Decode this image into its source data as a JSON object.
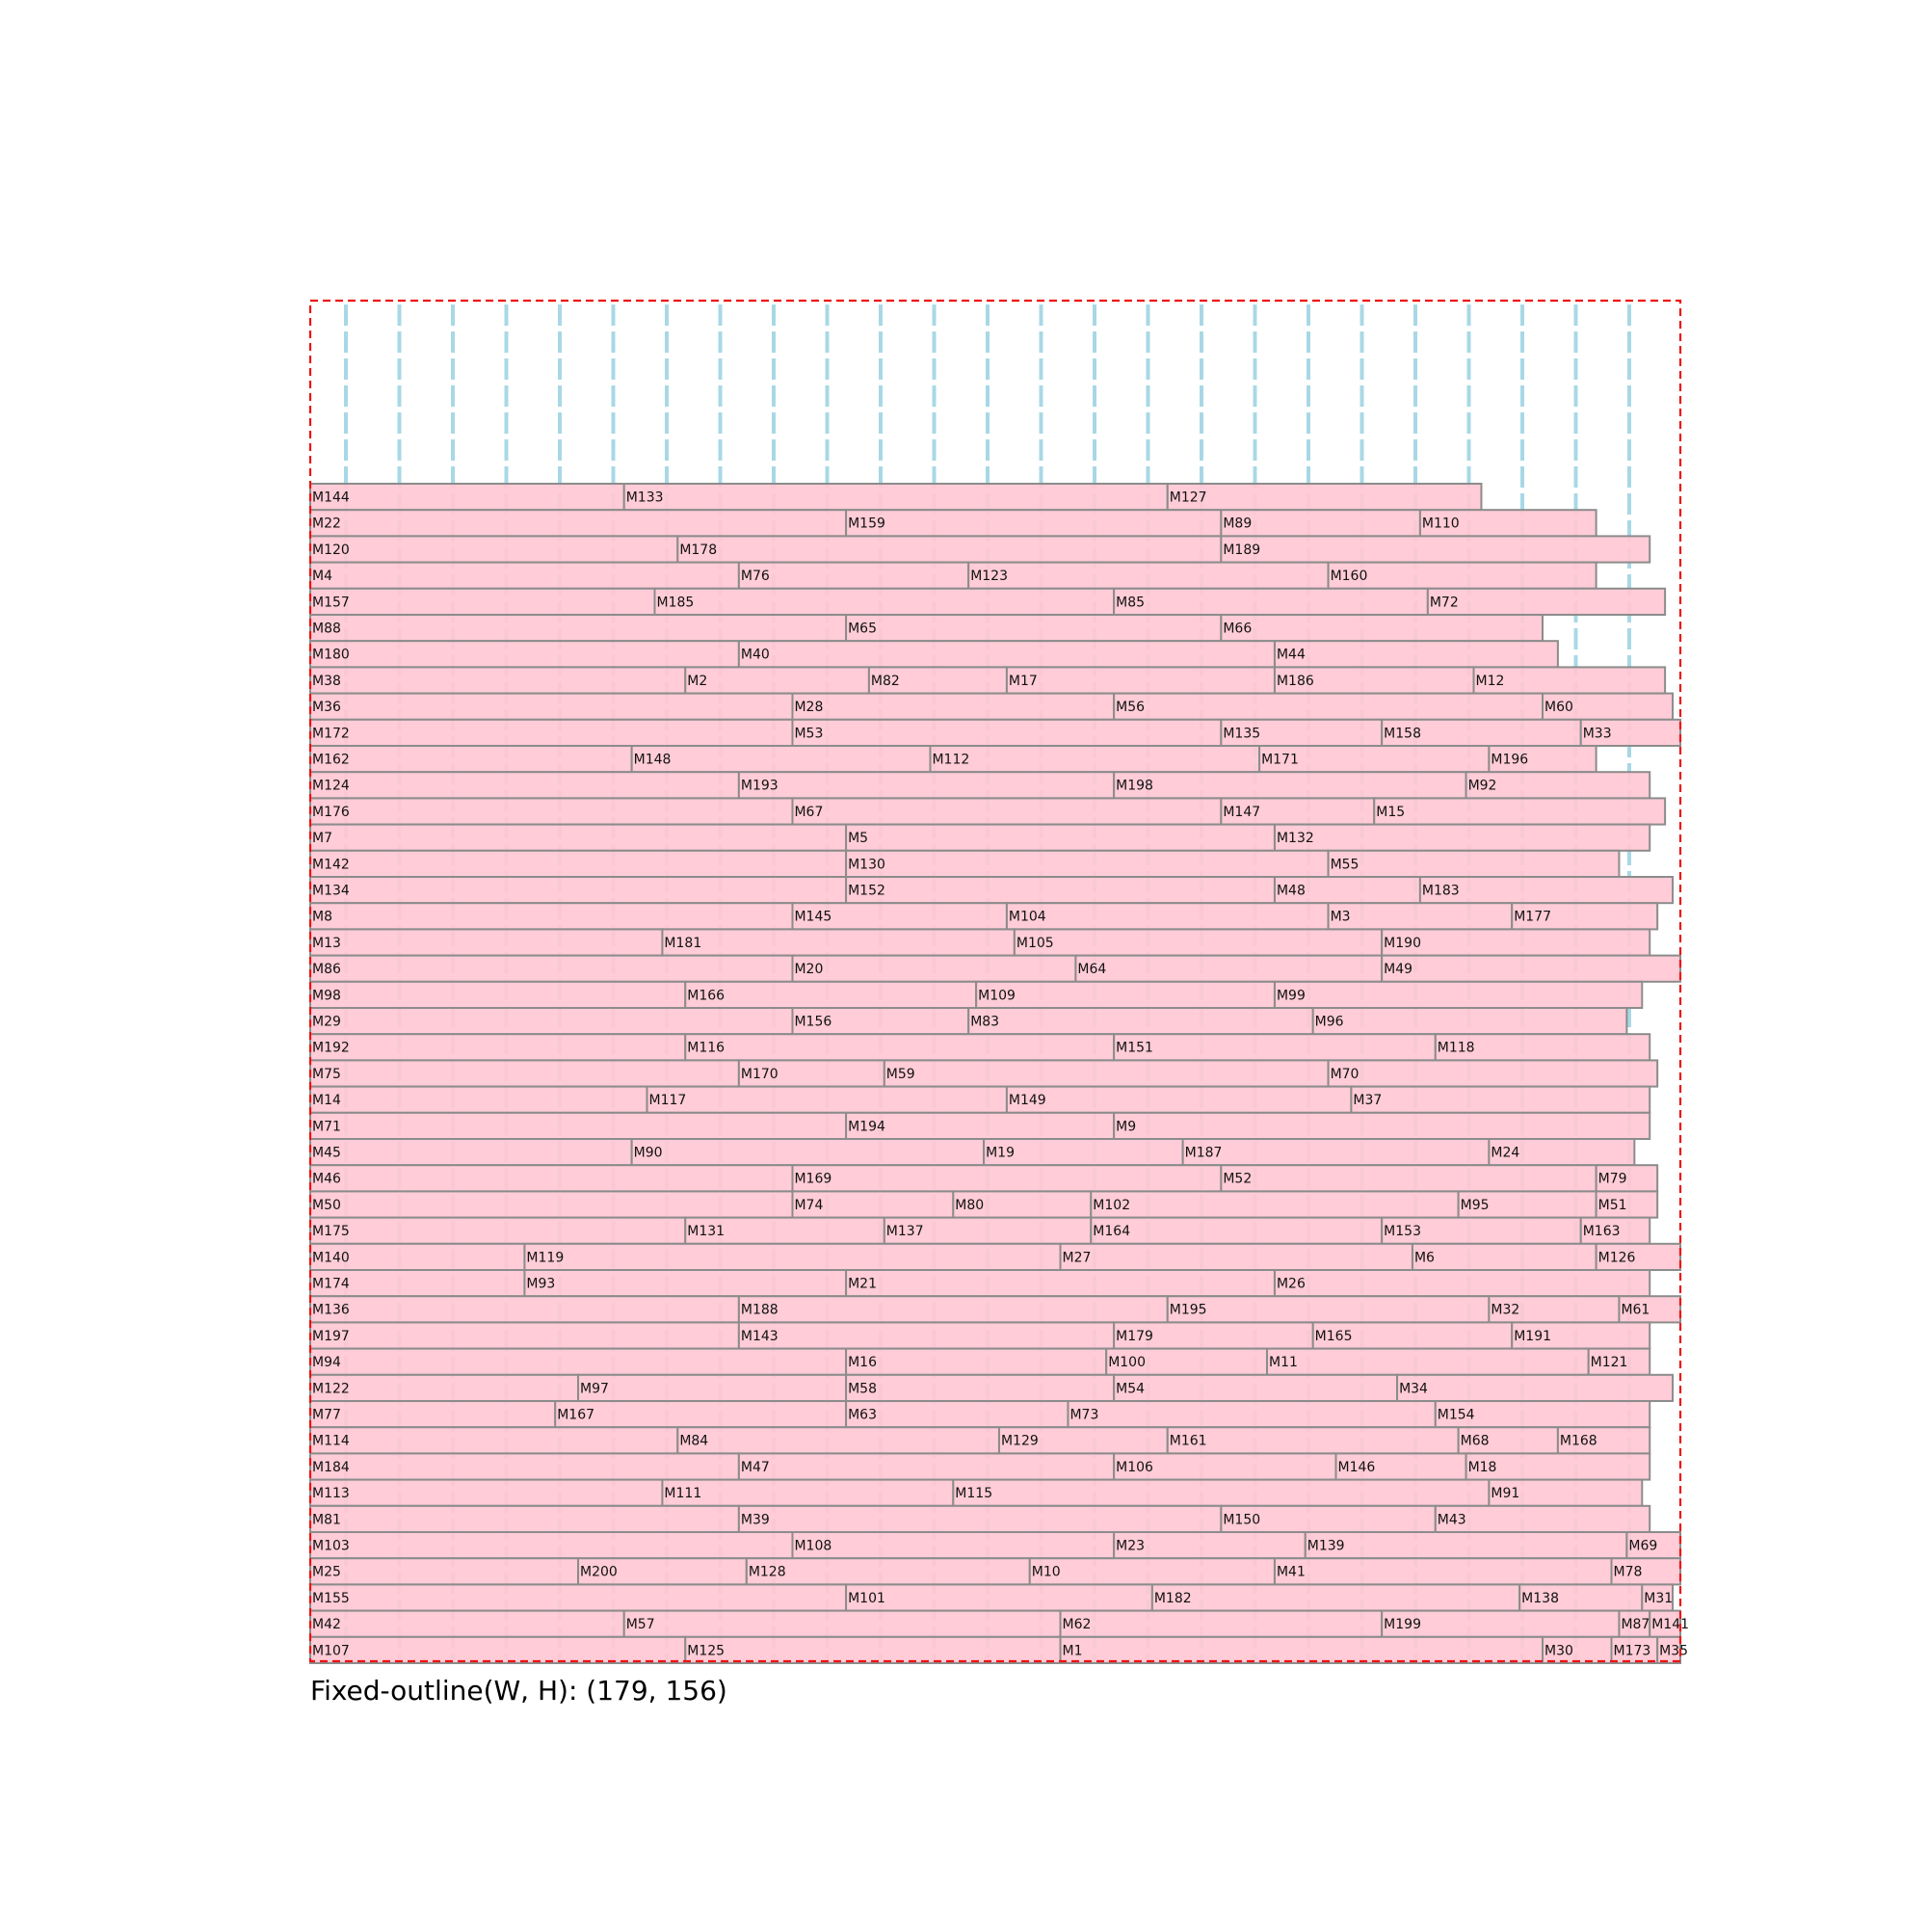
{
  "caption": "Fixed-outline(W, H): (179, 156)",
  "colors": {
    "outline": "#ee1111",
    "column_guides": "#a8d8e6",
    "block_fill": "#ffc8d4",
    "block_stroke": "#8c8c8c",
    "label": "#111111"
  },
  "outline_size": [
    179,
    156
  ],
  "rows": [
    [
      [
        "M144",
        0
      ],
      [
        "M133",
        41
      ],
      [
        "M127",
        112
      ],
      {
        "end": 153
      }
    ],
    [
      [
        "M22",
        0
      ],
      [
        "M159",
        70
      ],
      [
        "M89",
        119
      ],
      [
        "M110",
        145
      ],
      {
        "end": 168
      }
    ],
    [
      [
        "M120",
        0
      ],
      [
        "M178",
        48
      ],
      [
        "M189",
        119
      ],
      {
        "end": 175
      }
    ],
    [
      [
        "M4",
        0
      ],
      [
        "M76",
        56
      ],
      [
        "M123",
        86
      ],
      [
        "M160",
        133
      ],
      {
        "end": 168
      }
    ],
    [
      [
        "M157",
        0
      ],
      [
        "M185",
        45
      ],
      [
        "M85",
        105
      ],
      [
        "M72",
        146
      ],
      {
        "end": 177
      }
    ],
    [
      [
        "M88",
        0
      ],
      [
        "M65",
        70
      ],
      [
        "M66",
        119
      ],
      {
        "end": 161
      }
    ],
    [
      [
        "M180",
        0
      ],
      [
        "M40",
        56
      ],
      [
        "M44",
        126
      ],
      {
        "end": 163
      }
    ],
    [
      [
        "M38",
        0
      ],
      [
        "M2",
        49
      ],
      [
        "M82",
        73
      ],
      [
        "M17",
        91
      ],
      [
        "M186",
        126
      ],
      [
        "M12",
        152
      ],
      {
        "end": 177
      }
    ],
    [
      [
        "M36",
        0
      ],
      [
        "M28",
        63
      ],
      [
        "M56",
        105
      ],
      [
        "M60",
        161
      ],
      {
        "end": 178
      }
    ],
    [
      [
        "M172",
        0
      ],
      [
        "M53",
        63
      ],
      [
        "M135",
        119
      ],
      [
        "M158",
        140
      ],
      [
        "M33",
        166
      ],
      {
        "end": 179
      }
    ],
    [
      [
        "M162",
        0
      ],
      [
        "M148",
        42
      ],
      [
        "M112",
        81
      ],
      [
        "M171",
        124
      ],
      [
        "M196",
        154
      ],
      {
        "end": 168
      }
    ],
    [
      [
        "M124",
        0
      ],
      [
        "M193",
        56
      ],
      [
        "M198",
        105
      ],
      [
        "M92",
        151
      ],
      {
        "end": 175
      }
    ],
    [
      [
        "M176",
        0
      ],
      [
        "M67",
        63
      ],
      [
        "M147",
        119
      ],
      [
        "M15",
        139
      ],
      {
        "end": 177
      }
    ],
    [
      [
        "M7",
        0
      ],
      [
        "M5",
        70
      ],
      [
        "M132",
        126
      ],
      {
        "end": 175
      }
    ],
    [
      [
        "M142",
        0
      ],
      [
        "M130",
        70
      ],
      [
        "M55",
        133
      ],
      {
        "end": 171
      }
    ],
    [
      [
        "M134",
        0
      ],
      [
        "M152",
        70
      ],
      [
        "M48",
        126
      ],
      [
        "M183",
        145
      ],
      {
        "end": 178
      }
    ],
    [
      [
        "M8",
        0
      ],
      [
        "M145",
        63
      ],
      [
        "M104",
        91
      ],
      [
        "M3",
        133
      ],
      [
        "M177",
        157
      ],
      {
        "end": 176
      }
    ],
    [
      [
        "M13",
        0
      ],
      [
        "M181",
        46
      ],
      [
        "M105",
        92
      ],
      [
        "M190",
        140
      ],
      {
        "end": 175
      }
    ],
    [
      [
        "M86",
        0
      ],
      [
        "M20",
        63
      ],
      [
        "M64",
        100
      ],
      [
        "M49",
        140
      ],
      {
        "end": 179
      }
    ],
    [
      [
        "M98",
        0
      ],
      [
        "M166",
        49
      ],
      [
        "M109",
        87
      ],
      [
        "M99",
        126
      ],
      {
        "end": 174
      }
    ],
    [
      [
        "M29",
        0
      ],
      [
        "M156",
        63
      ],
      [
        "M83",
        86
      ],
      [
        "M96",
        131
      ],
      {
        "end": 172
      }
    ],
    [
      [
        "M192",
        0
      ],
      [
        "M116",
        49
      ],
      [
        "M151",
        105
      ],
      [
        "M118",
        147
      ],
      {
        "end": 175
      }
    ],
    [
      [
        "M75",
        0
      ],
      [
        "M170",
        56
      ],
      [
        "M59",
        75
      ],
      [
        "M70",
        133
      ],
      {
        "end": 176
      }
    ],
    [
      [
        "M14",
        0
      ],
      [
        "M117",
        44
      ],
      [
        "M149",
        91
      ],
      [
        "M37",
        136
      ],
      {
        "end": 175
      }
    ],
    [
      [
        "M71",
        0
      ],
      [
        "M194",
        70
      ],
      [
        "M9",
        105
      ],
      {
        "end": 175
      }
    ],
    [
      [
        "M45",
        0
      ],
      [
        "M90",
        42
      ],
      [
        "M19",
        88
      ],
      [
        "M187",
        114
      ],
      [
        "M24",
        154
      ],
      {
        "end": 173
      }
    ],
    [
      [
        "M46",
        0
      ],
      [
        "M169",
        63
      ],
      [
        "M52",
        119
      ],
      [
        "M79",
        168
      ],
      {
        "end": 176
      }
    ],
    [
      [
        "M50",
        0
      ],
      [
        "M74",
        63
      ],
      [
        "M80",
        84
      ],
      [
        "M102",
        102
      ],
      [
        "M95",
        150
      ],
      [
        "M51",
        168
      ],
      {
        "end": 176
      }
    ],
    [
      [
        "M175",
        0
      ],
      [
        "M131",
        49
      ],
      [
        "M137",
        75
      ],
      [
        "M164",
        102
      ],
      [
        "M153",
        140
      ],
      [
        "M163",
        166
      ],
      {
        "end": 175
      }
    ],
    [
      [
        "M140",
        0
      ],
      [
        "M119",
        28
      ],
      [
        "M27",
        98
      ],
      [
        "M6",
        144
      ],
      [
        "M126",
        168
      ],
      {
        "end": 179
      }
    ],
    [
      [
        "M174",
        0
      ],
      [
        "M93",
        28
      ],
      [
        "M21",
        70
      ],
      [
        "M26",
        126
      ],
      {
        "end": 175
      }
    ],
    [
      [
        "M136",
        0
      ],
      [
        "M188",
        56
      ],
      [
        "M195",
        112
      ],
      [
        "M32",
        154
      ],
      [
        "M61",
        171
      ],
      {
        "end": 179
      }
    ],
    [
      [
        "M197",
        0
      ],
      [
        "M143",
        56
      ],
      [
        "M179",
        105
      ],
      [
        "M165",
        131
      ],
      [
        "M191",
        157
      ],
      {
        "end": 175
      }
    ],
    [
      [
        "M94",
        0
      ],
      [
        "M16",
        70
      ],
      [
        "M100",
        104
      ],
      [
        "M11",
        125
      ],
      [
        "M121",
        167
      ],
      {
        "end": 175
      }
    ],
    [
      [
        "M122",
        0
      ],
      [
        "M97",
        35
      ],
      [
        "M58",
        70
      ],
      [
        "M54",
        105
      ],
      [
        "M34",
        142
      ],
      {
        "end": 178
      }
    ],
    [
      [
        "M77",
        0
      ],
      [
        "M167",
        32
      ],
      [
        "M63",
        70
      ],
      [
        "M73",
        99
      ],
      [
        "M154",
        147
      ],
      {
        "end": 175
      }
    ],
    [
      [
        "M114",
        0
      ],
      [
        "M84",
        48
      ],
      [
        "M129",
        90
      ],
      [
        "M161",
        112
      ],
      [
        "M68",
        150
      ],
      [
        "M168",
        163
      ],
      {
        "end": 175
      }
    ],
    [
      [
        "M184",
        0
      ],
      [
        "M47",
        56
      ],
      [
        "M106",
        105
      ],
      [
        "M146",
        134
      ],
      [
        "M18",
        151
      ],
      {
        "end": 175
      }
    ],
    [
      [
        "M113",
        0
      ],
      [
        "M111",
        46
      ],
      [
        "M115",
        84
      ],
      [
        "M91",
        154
      ],
      {
        "end": 174
      }
    ],
    [
      [
        "M81",
        0
      ],
      [
        "M39",
        56
      ],
      [
        "M150",
        119
      ],
      [
        "M43",
        147
      ],
      {
        "end": 175
      }
    ],
    [
      [
        "M103",
        0
      ],
      [
        "M108",
        63
      ],
      [
        "M23",
        105
      ],
      [
        "M139",
        130
      ],
      [
        "M69",
        172
      ],
      {
        "end": 179
      }
    ],
    [
      [
        "M25",
        0
      ],
      [
        "M200",
        35
      ],
      [
        "M128",
        57
      ],
      [
        "M10",
        94
      ],
      [
        "M41",
        126
      ],
      [
        "M78",
        170
      ],
      {
        "end": 179
      }
    ],
    [
      [
        "M155",
        0
      ],
      [
        "M101",
        70
      ],
      [
        "M182",
        110
      ],
      [
        "M138",
        158
      ],
      [
        "M31",
        174
      ],
      {
        "end": 178
      }
    ],
    [
      [
        "M42",
        0
      ],
      [
        "M57",
        41
      ],
      [
        "M62",
        98
      ],
      [
        "M199",
        140
      ],
      [
        "M87",
        171
      ],
      [
        "M141",
        175
      ],
      {
        "end": 179
      }
    ],
    [
      [
        "M107",
        0
      ],
      [
        "M125",
        49
      ],
      [
        "M1",
        98
      ],
      [
        "M30",
        161
      ],
      [
        "M173",
        170
      ],
      [
        "M35",
        176
      ],
      {
        "end": 179
      }
    ]
  ]
}
